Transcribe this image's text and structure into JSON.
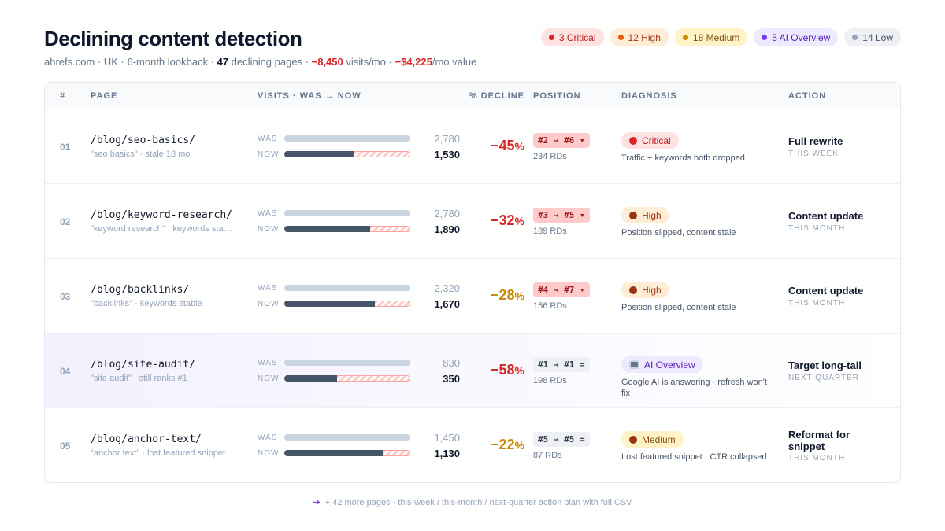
{
  "header": {
    "title": "Declining content detection",
    "subtitle": {
      "lead": "ahrefs.com · UK · 6-month lookback · ",
      "pages": "47",
      "pages_text": " declining pages · ",
      "visits": "−8,450",
      "visits_text": " visits/mo · ",
      "value": "−$4,225",
      "value_text": "/mo value"
    },
    "badges": [
      {
        "text": "3 Critical",
        "tone": "critical"
      },
      {
        "text": "12 High",
        "tone": "high"
      },
      {
        "text": "18 Medium",
        "tone": "medium"
      },
      {
        "text": "5 AI Overview",
        "tone": "ai"
      },
      {
        "text": "14 Low",
        "tone": "low"
      }
    ]
  },
  "table": {
    "columns": [
      "#",
      "PAGE",
      "VISITS · WAS → NOW",
      "% DECLINE",
      "POSITION",
      "DIAGNOSIS",
      "ACTION"
    ],
    "bar_labels": {
      "was": "WAS",
      "now": "NOW"
    },
    "percent_sign": "%",
    "rows": [
      {
        "num": "01",
        "page": "/blog/seo-basics/",
        "note": "\"seo basics\" · stale 18 mo",
        "was": {
          "value": 2780,
          "label": "2,780"
        },
        "now": {
          "value": 1530,
          "label": "1,530"
        },
        "decline": "−45",
        "decline_color": "#dc2626",
        "position": "#2 → #6 ▾",
        "position_tone": "down",
        "rds": "234 RDs",
        "diagnosis": {
          "label": "Critical",
          "tone": "critical",
          "text": "Traffic + keywords both dropped"
        },
        "action": {
          "title": "Full rewrite",
          "when": "THIS WEEK"
        }
      },
      {
        "num": "02",
        "page": "/blog/keyword-research/",
        "note": "\"keyword research\" · keywords sta…",
        "was": {
          "value": 2780,
          "label": "2,780"
        },
        "now": {
          "value": 1890,
          "label": "1,890"
        },
        "decline": "−32",
        "decline_color": "#dc2626",
        "position": "#3 → #5 ▾",
        "position_tone": "down",
        "rds": "189 RDs",
        "diagnosis": {
          "label": "High",
          "tone": "high",
          "text": "Position slipped, content stale"
        },
        "action": {
          "title": "Content update",
          "when": "THIS MONTH"
        }
      },
      {
        "num": "03",
        "page": "/blog/backlinks/",
        "note": "\"backlinks\" · keywords stable",
        "was": {
          "value": 2320,
          "label": "2,320"
        },
        "now": {
          "value": 1670,
          "label": "1,670"
        },
        "decline": "−28",
        "decline_color": "#ca8a04",
        "position": "#4 → #7 ▾",
        "position_tone": "down",
        "rds": "156 RDs",
        "diagnosis": {
          "label": "High",
          "tone": "high",
          "text": "Position slipped, content stale"
        },
        "action": {
          "title": "Content update",
          "when": "THIS MONTH"
        }
      },
      {
        "num": "04",
        "page": "/blog/site-audit/",
        "note": "\"site audit\" · still ranks #1",
        "was": {
          "value": 830,
          "label": "830"
        },
        "now": {
          "value": 350,
          "label": "350"
        },
        "decline": "−58",
        "decline_color": "#dc2626",
        "position": "#1 → #1 =",
        "position_tone": "flat",
        "rds": "198 RDs",
        "diagnosis": {
          "label": "AI Overview",
          "tone": "ai",
          "text": "Google AI is answering · refresh won't fix"
        },
        "action": {
          "title": "Target long-tail",
          "when": "NEXT QUARTER"
        },
        "highlight": true
      },
      {
        "num": "05",
        "page": "/blog/anchor-text/",
        "note": "\"anchor text\" · lost featured snippet",
        "was": {
          "value": 1450,
          "label": "1,450"
        },
        "now": {
          "value": 1130,
          "label": "1,130"
        },
        "decline": "−22",
        "decline_color": "#ca8a04",
        "position": "#5 → #5 =",
        "position_tone": "flat",
        "rds": "87 RDs",
        "diagnosis": {
          "label": "Medium",
          "tone": "medium",
          "text": "Lost featured snippet · CTR collapsed"
        },
        "action": {
          "title": "Reformat for snippet",
          "when": "THIS MONTH"
        }
      }
    ]
  },
  "footer": {
    "arrow": "➔",
    "text": "+ 42 more pages · this-week / this-month / next-quarter action plan with full CSV"
  }
}
